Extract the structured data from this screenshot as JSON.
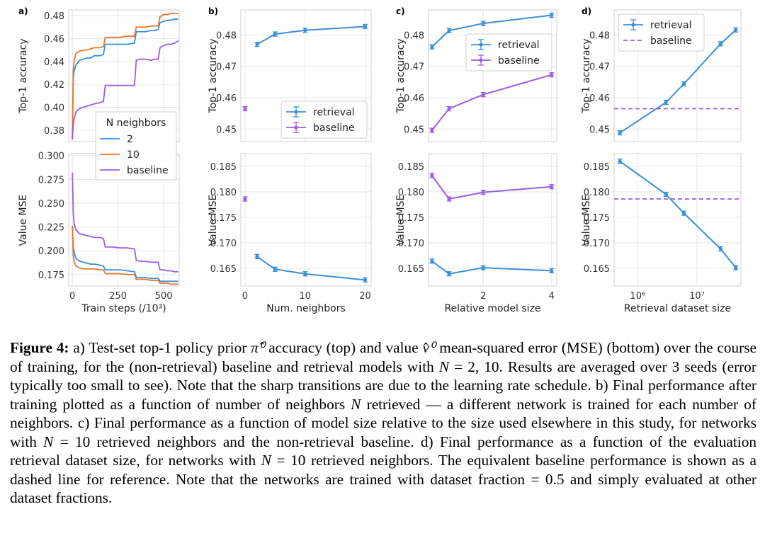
{
  "colors": {
    "retrieval": "#3a8fd9",
    "n2": "#3a8fd9",
    "n10": "#e8772e",
    "baseline": "#9b5de5",
    "grid": "#e6e6e6",
    "frame": "#d0d0d0"
  },
  "chart_data": [
    {
      "panel": "a)",
      "type": "line",
      "xlabel": "Train steps (/10³)",
      "xlim": [
        -20,
        585
      ],
      "xticks": [
        0,
        250,
        500
      ],
      "legend": {
        "title": "N neighbors",
        "entries": [
          "2",
          "10",
          "baseline"
        ],
        "placement": "center-left"
      },
      "top": {
        "ylabel": "Top-1 accuracy",
        "ylim": [
          0.37,
          0.485
        ],
        "yticks": [
          0.38,
          0.4,
          0.42,
          0.44,
          0.46,
          0.48
        ],
        "series": [
          {
            "name": "2",
            "x": [
              0,
              5,
              10,
              20,
              40,
              60,
              80,
              100,
              120,
              150,
              170,
              180,
              200,
              220,
              260,
              300,
              340,
              350,
              370,
              400,
              430,
              450,
              470,
              480,
              500,
              520,
              540,
              560,
              580
            ],
            "y": [
              0.372,
              0.425,
              0.432,
              0.437,
              0.441,
              0.442,
              0.443,
              0.443,
              0.445,
              0.445,
              0.446,
              0.455,
              0.455,
              0.455,
              0.455,
              0.455,
              0.456,
              0.466,
              0.466,
              0.466,
              0.467,
              0.467,
              0.468,
              0.474,
              0.475,
              0.476,
              0.476,
              0.477,
              0.477
            ]
          },
          {
            "name": "10",
            "x": [
              0,
              5,
              10,
              20,
              40,
              60,
              80,
              100,
              120,
              150,
              170,
              180,
              200,
              220,
              260,
              300,
              340,
              350,
              370,
              400,
              430,
              450,
              470,
              480,
              500,
              520,
              540,
              560,
              580
            ],
            "y": [
              0.372,
              0.432,
              0.441,
              0.447,
              0.449,
              0.45,
              0.45,
              0.451,
              0.452,
              0.452,
              0.453,
              0.461,
              0.461,
              0.461,
              0.461,
              0.462,
              0.462,
              0.47,
              0.47,
              0.47,
              0.471,
              0.471,
              0.471,
              0.479,
              0.481,
              0.481,
              0.482,
              0.482,
              0.482
            ]
          },
          {
            "name": "baseline",
            "x": [
              0,
              5,
              10,
              20,
              40,
              60,
              80,
              100,
              120,
              150,
              170,
              180,
              200,
              220,
              260,
              300,
              340,
              350,
              370,
              400,
              430,
              450,
              470,
              480,
              500,
              520,
              540,
              560,
              580
            ],
            "y": [
              0.372,
              0.385,
              0.39,
              0.396,
              0.399,
              0.4,
              0.401,
              0.402,
              0.403,
              0.404,
              0.405,
              0.419,
              0.419,
              0.419,
              0.419,
              0.419,
              0.419,
              0.441,
              0.442,
              0.442,
              0.441,
              0.442,
              0.442,
              0.452,
              0.454,
              0.455,
              0.455,
              0.456,
              0.458
            ]
          }
        ]
      },
      "bottom": {
        "ylabel": "Value MSE",
        "ylim": [
          0.163,
          0.302
        ],
        "yticks": [
          0.175,
          0.2,
          0.225,
          0.25,
          0.275,
          0.3
        ],
        "series": [
          {
            "name": "2",
            "x": [
              0,
              5,
              10,
              20,
              40,
              60,
              80,
              100,
              120,
              150,
              170,
              180,
              200,
              220,
              260,
              300,
              340,
              350,
              370,
              400,
              430,
              450,
              470,
              480,
              500,
              520,
              540,
              560,
              580
            ],
            "y": [
              0.225,
              0.205,
              0.198,
              0.192,
              0.189,
              0.188,
              0.187,
              0.186,
              0.186,
              0.185,
              0.184,
              0.18,
              0.18,
              0.18,
              0.18,
              0.179,
              0.178,
              0.172,
              0.172,
              0.172,
              0.171,
              0.171,
              0.171,
              0.168,
              0.168,
              0.168,
              0.168,
              0.168,
              0.168
            ]
          },
          {
            "name": "10",
            "x": [
              0,
              5,
              10,
              20,
              40,
              60,
              80,
              100,
              120,
              150,
              170,
              180,
              200,
              220,
              260,
              300,
              340,
              350,
              370,
              400,
              430,
              450,
              470,
              480,
              500,
              520,
              540,
              560,
              580
            ],
            "y": [
              0.226,
              0.195,
              0.188,
              0.184,
              0.182,
              0.181,
              0.181,
              0.181,
              0.181,
              0.18,
              0.18,
              0.176,
              0.176,
              0.176,
              0.176,
              0.175,
              0.175,
              0.17,
              0.17,
              0.17,
              0.169,
              0.169,
              0.169,
              0.166,
              0.166,
              0.166,
              0.165,
              0.165,
              0.165
            ]
          },
          {
            "name": "baseline",
            "x": [
              0,
              5,
              10,
              20,
              40,
              60,
              80,
              100,
              120,
              150,
              170,
              180,
              200,
              220,
              260,
              300,
              340,
              350,
              370,
              400,
              430,
              450,
              470,
              480,
              500,
              520,
              540,
              560,
              580
            ],
            "y": [
              0.282,
              0.24,
              0.228,
              0.222,
              0.218,
              0.217,
              0.216,
              0.215,
              0.214,
              0.214,
              0.213,
              0.204,
              0.204,
              0.204,
              0.203,
              0.203,
              0.202,
              0.19,
              0.189,
              0.189,
              0.188,
              0.188,
              0.188,
              0.18,
              0.18,
              0.179,
              0.179,
              0.178,
              0.178
            ]
          }
        ]
      }
    },
    {
      "panel": "b)",
      "type": "line",
      "xlabel": "Num. neighbors",
      "xlim": [
        -0.7,
        21
      ],
      "xticks": [
        0,
        10,
        20
      ],
      "legend": {
        "entries": [
          "retrieval",
          "baseline"
        ],
        "placement": "lower-right"
      },
      "top": {
        "ylabel": "Top-1 accuracy",
        "ylim": [
          0.446,
          0.488
        ],
        "yticks": [
          0.45,
          0.46,
          0.47,
          0.48
        ],
        "series": [
          {
            "name": "retrieval",
            "x": [
              2,
              5,
              10,
              20
            ],
            "y": [
              0.477,
              0.4803,
              0.4815,
              0.4827
            ]
          },
          {
            "name": "baseline",
            "x": [
              0
            ],
            "y": [
              0.4565
            ]
          }
        ]
      },
      "bottom": {
        "ylabel": "Value MSE",
        "ylim": [
          0.1615,
          0.1875
        ],
        "yticks": [
          0.165,
          0.17,
          0.175,
          0.18,
          0.185
        ],
        "series": [
          {
            "name": "retrieval",
            "x": [
              2,
              5,
              10,
              20
            ],
            "y": [
              0.1673,
              0.1648,
              0.1639,
              0.1627
            ]
          },
          {
            "name": "baseline",
            "x": [
              0
            ],
            "y": [
              0.1786
            ]
          }
        ]
      }
    },
    {
      "panel": "c)",
      "type": "line",
      "xlabel": "Relative model size",
      "xlim": [
        0.4,
        4.15
      ],
      "xticks": [
        2,
        4
      ],
      "legend": {
        "entries": [
          "retrieval",
          "baseline"
        ],
        "placement": "top-right"
      },
      "top": {
        "ylabel": "Top-1 accuracy",
        "ylim": [
          0.446,
          0.488
        ],
        "yticks": [
          0.45,
          0.46,
          0.47,
          0.48
        ],
        "series": [
          {
            "name": "retrieval",
            "x": [
              0.5,
              1,
              2,
              4
            ],
            "y": [
              0.4762,
              0.4814,
              0.4837,
              0.4863
            ]
          },
          {
            "name": "baseline",
            "x": [
              0.5,
              1,
              2,
              4
            ],
            "y": [
              0.4496,
              0.4565,
              0.461,
              0.4673
            ]
          }
        ]
      },
      "bottom": {
        "ylabel": "Value MSE",
        "ylim": [
          0.1615,
          0.1875
        ],
        "yticks": [
          0.165,
          0.17,
          0.175,
          0.18,
          0.185
        ],
        "series": [
          {
            "name": "retrieval",
            "x": [
              0.5,
              1,
              2,
              4
            ],
            "y": [
              0.1664,
              0.1639,
              0.1651,
              0.1645
            ]
          },
          {
            "name": "baseline",
            "x": [
              0.5,
              1,
              2,
              4
            ],
            "y": [
              0.1832,
              0.1786,
              0.1799,
              0.181
            ]
          }
        ]
      }
    },
    {
      "panel": "d)",
      "type": "line",
      "xlabel": "Retrieval dataset size",
      "xscale": "log",
      "xlim": [
        400000,
        55000000
      ],
      "xticks": [
        1000000,
        10000000
      ],
      "xticklabels": [
        "10⁶",
        "10⁷"
      ],
      "legend": {
        "entries": [
          "retrieval",
          "baseline"
        ],
        "placement": "top-left"
      },
      "top": {
        "ylabel": "Top-1 accuracy",
        "ylim": [
          0.446,
          0.488
        ],
        "yticks": [
          0.45,
          0.46,
          0.47,
          0.48
        ],
        "series": [
          {
            "name": "retrieval",
            "x": [
              500000,
              3000000,
              6000000,
              25000000,
              45000000
            ],
            "y": [
              0.4488,
              0.4585,
              0.4644,
              0.4772,
              0.4816
            ]
          },
          {
            "name": "baseline",
            "y": 0.4565,
            "style": "dashed"
          }
        ]
      },
      "bottom": {
        "ylabel": "Value MSE",
        "ylim": [
          0.1615,
          0.1875
        ],
        "yticks": [
          0.165,
          0.17,
          0.175,
          0.18,
          0.185
        ],
        "series": [
          {
            "name": "retrieval",
            "x": [
              500000,
              3000000,
              6000000,
              25000000,
              45000000
            ],
            "y": [
              0.186,
              0.1795,
              0.1758,
              0.1688,
              0.1651
            ]
          },
          {
            "name": "baseline",
            "y": 0.1786,
            "style": "dashed"
          }
        ]
      }
    }
  ],
  "caption": {
    "figure_label": "Figure 4:",
    "segments": [
      {
        "t": "t",
        "v": " a) Test-set top-1 policy prior "
      },
      {
        "t": "m",
        "v": "π̂⁰"
      },
      {
        "t": "t",
        "v": " accuracy (top) and value "
      },
      {
        "t": "m",
        "v": "v̂⁰"
      },
      {
        "t": "t",
        "v": " mean-squared error (MSE) (bottom) over the course of training, for the (non-retrieval) baseline and retrieval models with "
      },
      {
        "t": "m",
        "v": "N"
      },
      {
        "t": "t",
        "v": " = 2, 10. Results are averaged over 3 seeds (error typically too small to see). Note that the sharp transitions are due to the learning rate schedule.  b) Final performance after training plotted as a function of number of neighbors "
      },
      {
        "t": "m",
        "v": "N"
      },
      {
        "t": "t",
        "v": " retrieved — a different network is trained for each number of neighbors.  c) Final performance as a function of model size relative to the size used elsewhere in this study, for networks with "
      },
      {
        "t": "m",
        "v": "N"
      },
      {
        "t": "t",
        "v": " = 10 retrieved neighbors and the non-retrieval baseline.  d) Final performance as a function of the evaluation retrieval dataset size, for networks with "
      },
      {
        "t": "m",
        "v": "N"
      },
      {
        "t": "t",
        "v": " = 10 retrieved neighbors. The equivalent baseline performance is shown as a dashed line for reference. Note that the networks are trained with dataset fraction = 0.5 and simply evaluated at other dataset fractions."
      }
    ]
  }
}
